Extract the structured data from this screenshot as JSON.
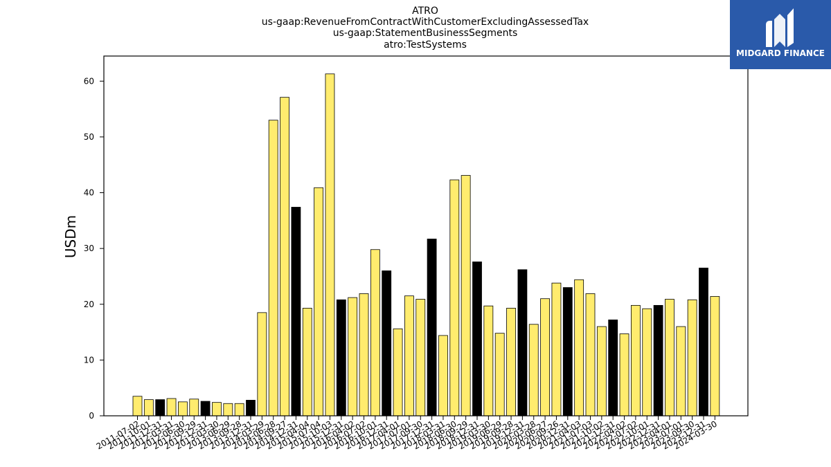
{
  "brand": {
    "name": "MIDGARD FINANCE",
    "bg_color": "#2a5aaa"
  },
  "colors": {
    "bar_default": "#ffec6e",
    "bar_highlight": "#000000",
    "bar_edge": "#000000"
  },
  "chart_data": {
    "type": "bar",
    "title": [
      "ATRO",
      "us-gaap:RevenueFromContractWithCustomerExcludingAssessedTax",
      "us-gaap:StatementBusinessSegments",
      "atro:TestSystems"
    ],
    "xlabel": "",
    "ylabel": "USDm",
    "ylim": [
      0,
      64.5
    ],
    "yticks": [
      0,
      10,
      20,
      30,
      40,
      50,
      60
    ],
    "grid": false,
    "categories": [
      "2011-07-02",
      "2011-10-01",
      "2011-12-31",
      "2012-03-31",
      "2012-06-30",
      "2012-09-29",
      "2012-12-31",
      "2013-03-30",
      "2013-06-29",
      "2013-09-28",
      "2013-12-31",
      "2014-03-29",
      "2014-06-28",
      "2014-09-27",
      "2014-12-31",
      "2015-04-04",
      "2015-07-04",
      "2015-10-03",
      "2015-12-31",
      "2016-04-02",
      "2016-07-02",
      "2016-10-01",
      "2016-12-31",
      "2017-04-01",
      "2017-07-01",
      "2017-09-30",
      "2017-12-31",
      "2018-03-31",
      "2018-06-30",
      "2018-09-29",
      "2018-12-31",
      "2019-03-30",
      "2019-06-29",
      "2019-09-28",
      "2019-12-31",
      "2020-03-28",
      "2020-06-27",
      "2020-09-26",
      "2020-12-31",
      "2021-04-03",
      "2021-07-03",
      "2021-10-02",
      "2021-12-31",
      "2022-04-02",
      "2022-07-02",
      "2022-10-01",
      "2022-12-31",
      "2023-04-01",
      "2023-07-01",
      "2023-09-30",
      "2023-12-31",
      "2024-03-30"
    ],
    "values": [
      3.5,
      2.9,
      2.9,
      3.1,
      2.5,
      3.0,
      2.6,
      2.4,
      2.2,
      2.2,
      2.8,
      18.5,
      53.0,
      57.1,
      37.4,
      19.3,
      40.9,
      61.3,
      20.8,
      21.2,
      21.9,
      29.8,
      26.0,
      15.6,
      21.5,
      20.9,
      31.7,
      14.4,
      42.3,
      43.1,
      27.6,
      19.7,
      14.8,
      19.3,
      26.2,
      16.4,
      21.0,
      23.8,
      23.0,
      24.4,
      21.9,
      16.0,
      17.2,
      14.7,
      19.8,
      19.2,
      19.8,
      20.9,
      16.0,
      20.8,
      26.5,
      21.4
    ],
    "highlight": [
      false,
      false,
      true,
      false,
      false,
      false,
      true,
      false,
      false,
      false,
      true,
      false,
      false,
      false,
      true,
      false,
      false,
      false,
      true,
      false,
      false,
      false,
      true,
      false,
      false,
      false,
      true,
      false,
      false,
      false,
      true,
      false,
      false,
      false,
      true,
      false,
      false,
      false,
      true,
      false,
      false,
      false,
      true,
      false,
      false,
      false,
      true,
      false,
      false,
      false,
      true,
      false
    ]
  }
}
